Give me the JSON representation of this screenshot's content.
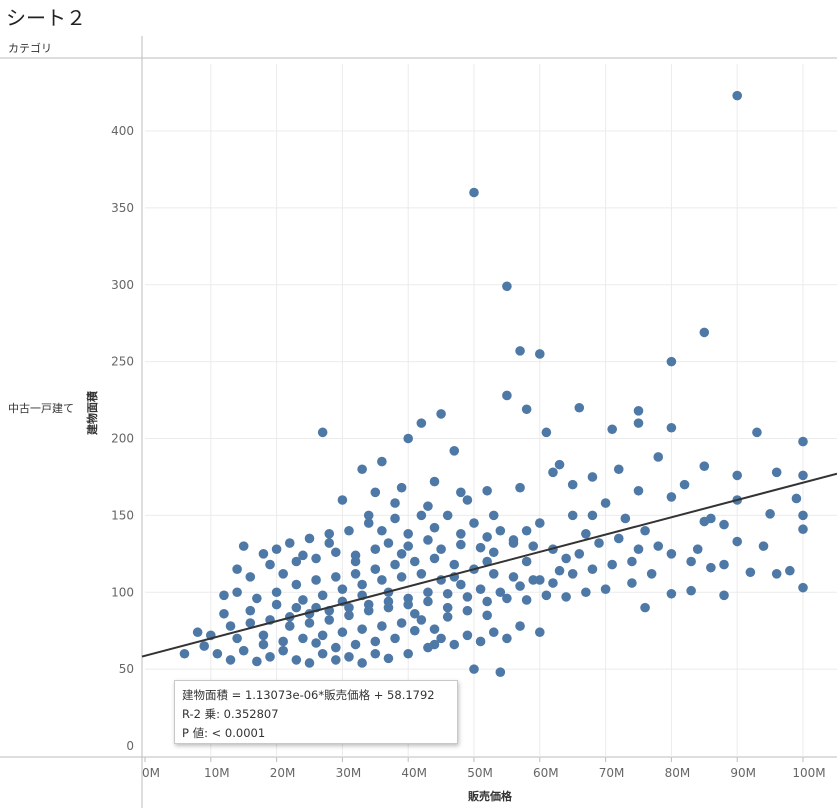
{
  "sheet": {
    "title": "シート２"
  },
  "header": {
    "category_label": "カテゴリ"
  },
  "rows": [
    {
      "label": "中古一戸建て"
    }
  ],
  "trend": {
    "equation": "建物面積 = 1.13073e-06*販売価格 + 58.1792",
    "r2": "R-2 乗: 0.352807",
    "p": "P 値: < 0.0001"
  },
  "colors": {
    "marks": "#4e79a7",
    "trend": "#333333",
    "grid": "#ebebeb",
    "axis": "#bdbdbd"
  },
  "chart_data": {
    "type": "scatter",
    "xlabel": "販売価格",
    "ylabel": "建物面積",
    "xlim": [
      0,
      105000000
    ],
    "ylim": [
      0,
      440
    ],
    "x_ticks": [
      0,
      10000000,
      20000000,
      30000000,
      40000000,
      50000000,
      60000000,
      70000000,
      80000000,
      90000000,
      100000000
    ],
    "x_tick_labels": [
      "0M",
      "10M",
      "20M",
      "30M",
      "40M",
      "50M",
      "60M",
      "70M",
      "80M",
      "90M",
      "100M"
    ],
    "y_ticks": [
      0,
      50,
      100,
      150,
      200,
      250,
      300,
      350,
      400
    ],
    "y_tick_labels": [
      "0",
      "50",
      "100",
      "150",
      "200",
      "250",
      "300",
      "350",
      "400"
    ],
    "grid": true,
    "trendline": {
      "slope": 1.13073e-06,
      "intercept": 58.1792
    },
    "points": [
      [
        90000000,
        423
      ],
      [
        50000000,
        360
      ],
      [
        55000000,
        299
      ],
      [
        85000000,
        269
      ],
      [
        57000000,
        257
      ],
      [
        60000000,
        255
      ],
      [
        80000000,
        250
      ],
      [
        45000000,
        216
      ],
      [
        66000000,
        220
      ],
      [
        58000000,
        219
      ],
      [
        75000000,
        218
      ],
      [
        27000000,
        204
      ],
      [
        40000000,
        200
      ],
      [
        47000000,
        192
      ],
      [
        36000000,
        185
      ],
      [
        33000000,
        180
      ],
      [
        42000000,
        210
      ],
      [
        61000000,
        204
      ],
      [
        71000000,
        206
      ],
      [
        80000000,
        207
      ],
      [
        100000000,
        198
      ],
      [
        93000000,
        204
      ],
      [
        75000000,
        210
      ],
      [
        55000000,
        228
      ],
      [
        63000000,
        183
      ],
      [
        68000000,
        175
      ],
      [
        30000000,
        160
      ],
      [
        35000000,
        165
      ],
      [
        38000000,
        158
      ],
      [
        44000000,
        172
      ],
      [
        48000000,
        165
      ],
      [
        52000000,
        166
      ],
      [
        57000000,
        168
      ],
      [
        62000000,
        178
      ],
      [
        65000000,
        170
      ],
      [
        72000000,
        180
      ],
      [
        78000000,
        188
      ],
      [
        85000000,
        182
      ],
      [
        90000000,
        176
      ],
      [
        96000000,
        178
      ],
      [
        100000000,
        176
      ],
      [
        99000000,
        161
      ],
      [
        90000000,
        160
      ],
      [
        85000000,
        146
      ],
      [
        88000000,
        144
      ],
      [
        95000000,
        151
      ],
      [
        100000000,
        150
      ],
      [
        100000000,
        141
      ],
      [
        90000000,
        133
      ],
      [
        80000000,
        162
      ],
      [
        82000000,
        170
      ],
      [
        75000000,
        166
      ],
      [
        70000000,
        158
      ],
      [
        68000000,
        150
      ],
      [
        65000000,
        150
      ],
      [
        60000000,
        145
      ],
      [
        58000000,
        140
      ],
      [
        54000000,
        140
      ],
      [
        50000000,
        145
      ],
      [
        46000000,
        150
      ],
      [
        42000000,
        150
      ],
      [
        38000000,
        148
      ],
      [
        34000000,
        145
      ],
      [
        31000000,
        140
      ],
      [
        28000000,
        138
      ],
      [
        25000000,
        135
      ],
      [
        22000000,
        132
      ],
      [
        20000000,
        128
      ],
      [
        18000000,
        125
      ],
      [
        15000000,
        130
      ],
      [
        14000000,
        115
      ],
      [
        16000000,
        110
      ],
      [
        19000000,
        118
      ],
      [
        21000000,
        112
      ],
      [
        23000000,
        120
      ],
      [
        26000000,
        122
      ],
      [
        29000000,
        126
      ],
      [
        32000000,
        124
      ],
      [
        35000000,
        128
      ],
      [
        37000000,
        132
      ],
      [
        40000000,
        130
      ],
      [
        43000000,
        134
      ],
      [
        45000000,
        128
      ],
      [
        48000000,
        131
      ],
      [
        51000000,
        129
      ],
      [
        53000000,
        126
      ],
      [
        56000000,
        132
      ],
      [
        59000000,
        130
      ],
      [
        62000000,
        128
      ],
      [
        66000000,
        125
      ],
      [
        69000000,
        132
      ],
      [
        72000000,
        135
      ],
      [
        75000000,
        128
      ],
      [
        78000000,
        130
      ],
      [
        80000000,
        125
      ],
      [
        83000000,
        120
      ],
      [
        86000000,
        116
      ],
      [
        88000000,
        118
      ],
      [
        92000000,
        113
      ],
      [
        96000000,
        112
      ],
      [
        98000000,
        114
      ],
      [
        100000000,
        103
      ],
      [
        88000000,
        98
      ],
      [
        83000000,
        101
      ],
      [
        80000000,
        99
      ],
      [
        76000000,
        90
      ],
      [
        74000000,
        106
      ],
      [
        70000000,
        102
      ],
      [
        67000000,
        100
      ],
      [
        64000000,
        97
      ],
      [
        61000000,
        98
      ],
      [
        58000000,
        95
      ],
      [
        55000000,
        96
      ],
      [
        52000000,
        94
      ],
      [
        49000000,
        97
      ],
      [
        46000000,
        99
      ],
      [
        43000000,
        100
      ],
      [
        40000000,
        96
      ],
      [
        37000000,
        94
      ],
      [
        34000000,
        92
      ],
      [
        31000000,
        90
      ],
      [
        28000000,
        88
      ],
      [
        25000000,
        86
      ],
      [
        22000000,
        84
      ],
      [
        19000000,
        82
      ],
      [
        16000000,
        80
      ],
      [
        13000000,
        78
      ],
      [
        10000000,
        72
      ],
      [
        8000000,
        74
      ],
      [
        6000000,
        60
      ],
      [
        9000000,
        65
      ],
      [
        11000000,
        60
      ],
      [
        13000000,
        56
      ],
      [
        15000000,
        62
      ],
      [
        17000000,
        55
      ],
      [
        19000000,
        58
      ],
      [
        21000000,
        62
      ],
      [
        23000000,
        56
      ],
      [
        25000000,
        54
      ],
      [
        27000000,
        60
      ],
      [
        29000000,
        56
      ],
      [
        31000000,
        58
      ],
      [
        33000000,
        54
      ],
      [
        35000000,
        60
      ],
      [
        37000000,
        57
      ],
      [
        40000000,
        60
      ],
      [
        43000000,
        64
      ],
      [
        45000000,
        70
      ],
      [
        47000000,
        66
      ],
      [
        49000000,
        72
      ],
      [
        51000000,
        68
      ],
      [
        53000000,
        74
      ],
      [
        55000000,
        70
      ],
      [
        57000000,
        78
      ],
      [
        60000000,
        74
      ],
      [
        50000000,
        50
      ],
      [
        54000000,
        48
      ],
      [
        44000000,
        66
      ],
      [
        41000000,
        75
      ],
      [
        39000000,
        80
      ],
      [
        36000000,
        78
      ],
      [
        33000000,
        76
      ],
      [
        30000000,
        74
      ],
      [
        27000000,
        72
      ],
      [
        24000000,
        70
      ],
      [
        21000000,
        68
      ],
      [
        18000000,
        66
      ],
      [
        14000000,
        70
      ],
      [
        12000000,
        86
      ],
      [
        12000000,
        98
      ],
      [
        14000000,
        100
      ],
      [
        17000000,
        96
      ],
      [
        20000000,
        100
      ],
      [
        23000000,
        105
      ],
      [
        26000000,
        108
      ],
      [
        29000000,
        110
      ],
      [
        32000000,
        112
      ],
      [
        35000000,
        115
      ],
      [
        38000000,
        118
      ],
      [
        41000000,
        120
      ],
      [
        44000000,
        122
      ],
      [
        47000000,
        118
      ],
      [
        50000000,
        115
      ],
      [
        53000000,
        112
      ],
      [
        56000000,
        110
      ],
      [
        59000000,
        108
      ],
      [
        62000000,
        106
      ],
      [
        65000000,
        112
      ],
      [
        68000000,
        115
      ],
      [
        71000000,
        118
      ],
      [
        74000000,
        120
      ],
      [
        77000000,
        112
      ],
      [
        24000000,
        95
      ],
      [
        27000000,
        98
      ],
      [
        30000000,
        102
      ],
      [
        33000000,
        105
      ],
      [
        36000000,
        108
      ],
      [
        39000000,
        110
      ],
      [
        42000000,
        112
      ],
      [
        45000000,
        108
      ],
      [
        48000000,
        105
      ],
      [
        51000000,
        102
      ],
      [
        54000000,
        100
      ],
      [
        57000000,
        104
      ],
      [
        60000000,
        108
      ],
      [
        63000000,
        114
      ],
      [
        22000000,
        78
      ],
      [
        25000000,
        80
      ],
      [
        28000000,
        82
      ],
      [
        31000000,
        85
      ],
      [
        34000000,
        88
      ],
      [
        37000000,
        90
      ],
      [
        40000000,
        92
      ],
      [
        43000000,
        94
      ],
      [
        46000000,
        90
      ],
      [
        49000000,
        88
      ],
      [
        52000000,
        85
      ],
      [
        42000000,
        82
      ],
      [
        38000000,
        70
      ],
      [
        35000000,
        68
      ],
      [
        32000000,
        66
      ],
      [
        29000000,
        64
      ],
      [
        26000000,
        67
      ],
      [
        18000000,
        72
      ],
      [
        16000000,
        88
      ],
      [
        20000000,
        92
      ],
      [
        24000000,
        124
      ],
      [
        28000000,
        132
      ],
      [
        32000000,
        120
      ],
      [
        36000000,
        140
      ],
      [
        40000000,
        138
      ],
      [
        44000000,
        142
      ],
      [
        48000000,
        138
      ],
      [
        52000000,
        136
      ],
      [
        56000000,
        134
      ],
      [
        47000000,
        110
      ],
      [
        46000000,
        84
      ],
      [
        41000000,
        86
      ],
      [
        37000000,
        100
      ],
      [
        33000000,
        98
      ],
      [
        30000000,
        94
      ],
      [
        26000000,
        90
      ],
      [
        23000000,
        90
      ],
      [
        44000000,
        76
      ],
      [
        52000000,
        120
      ],
      [
        58000000,
        120
      ],
      [
        64000000,
        122
      ],
      [
        67000000,
        138
      ],
      [
        73000000,
        148
      ],
      [
        76000000,
        140
      ],
      [
        84000000,
        128
      ],
      [
        86000000,
        148
      ],
      [
        94000000,
        130
      ],
      [
        39000000,
        168
      ],
      [
        43000000,
        156
      ],
      [
        49000000,
        160
      ],
      [
        53000000,
        150
      ],
      [
        34000000,
        150
      ],
      [
        39000000,
        125
      ]
    ]
  }
}
